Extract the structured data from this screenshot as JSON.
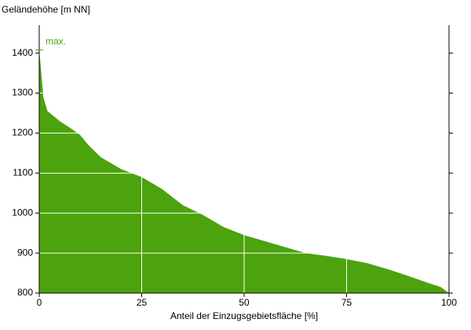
{
  "chart_data": {
    "type": "area",
    "ylabel": "Geländehöhe [m NN]",
    "xlabel": "Anteil der Einzugsgebietsfläche [%]",
    "annotation": "max.",
    "color": "#4ca30d",
    "x": [
      0,
      0.5,
      1,
      2,
      5,
      8,
      10,
      12,
      15,
      20,
      25,
      30,
      35,
      40,
      45,
      50,
      55,
      60,
      65,
      70,
      75,
      80,
      85,
      90,
      95,
      98,
      100
    ],
    "values": [
      1408,
      1350,
      1290,
      1255,
      1230,
      1210,
      1195,
      1170,
      1140,
      1110,
      1090,
      1060,
      1020,
      995,
      965,
      945,
      930,
      915,
      900,
      893,
      885,
      875,
      860,
      843,
      825,
      815,
      800
    ],
    "xlim": [
      0,
      100
    ],
    "ylim": [
      800,
      1470
    ],
    "xticks": [
      0,
      25,
      50,
      75,
      100
    ],
    "yticks": [
      800,
      900,
      1000,
      1100,
      1200,
      1300,
      1400
    ],
    "grid": true
  }
}
